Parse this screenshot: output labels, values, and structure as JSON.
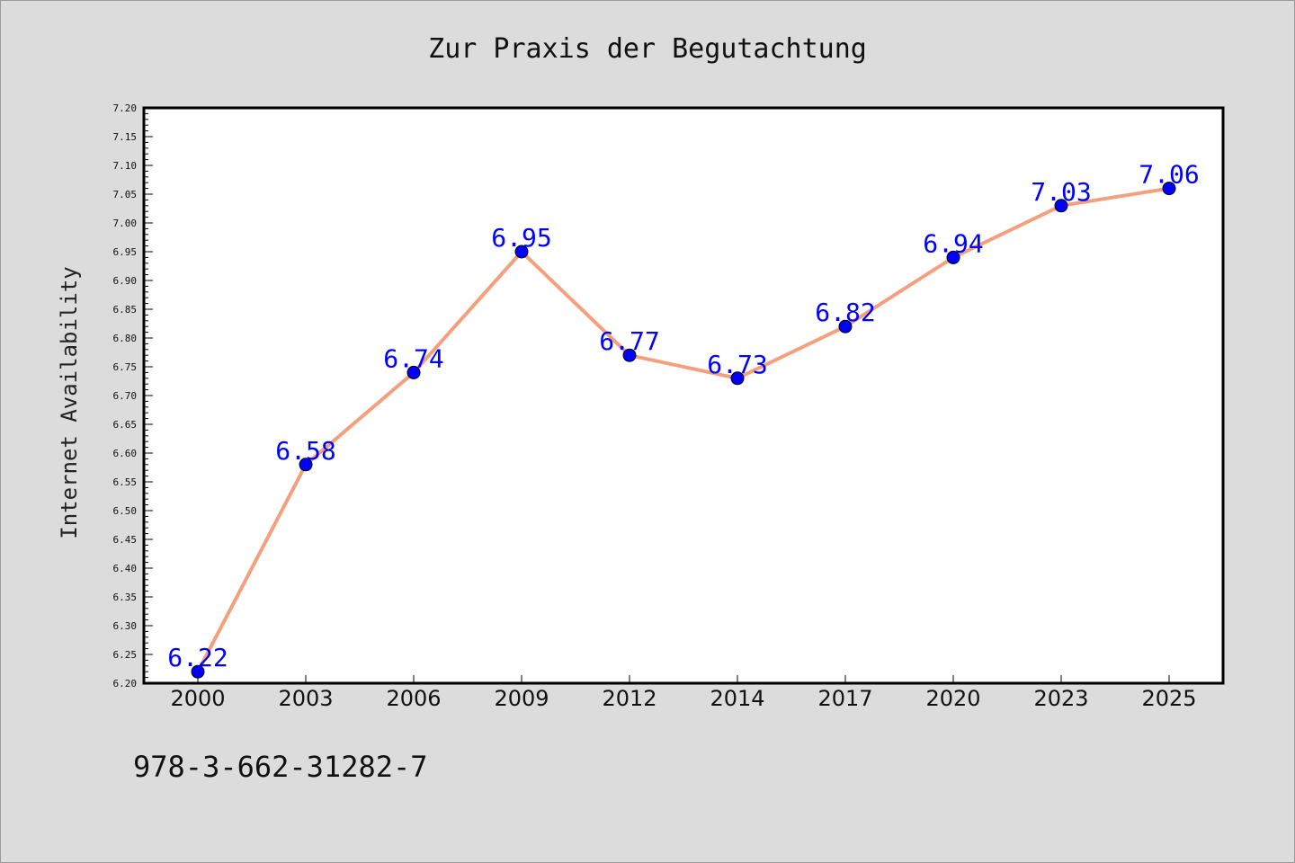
{
  "chart_data": {
    "type": "line",
    "title": "Zur Praxis der Begutachtung",
    "xlabel": "",
    "ylabel": "Internet Availability",
    "categories": [
      "2000",
      "2003",
      "2006",
      "2009",
      "2012",
      "2014",
      "2017",
      "2020",
      "2023",
      "2025"
    ],
    "series": [
      {
        "values": [
          6.22,
          6.58,
          6.74,
          6.95,
          6.77,
          6.73,
          6.82,
          6.94,
          7.03,
          7.06
        ],
        "line_color": "#f4a07e",
        "marker_color": "#0000ff",
        "label_color": "#0000ff"
      }
    ],
    "ylim": [
      6.2,
      7.2
    ],
    "y_ticks": [
      "6.20",
      "6.25",
      "6.30",
      "6.35",
      "6.40",
      "6.45",
      "6.50",
      "6.55",
      "6.60",
      "6.65",
      "6.70",
      "6.75",
      "6.80",
      "6.85",
      "6.90",
      "6.95",
      "7.00",
      "7.05",
      "7.10",
      "7.15",
      "7.20"
    ],
    "grid": false,
    "legend": "none",
    "annotation": "978-3-662-31282-7"
  }
}
